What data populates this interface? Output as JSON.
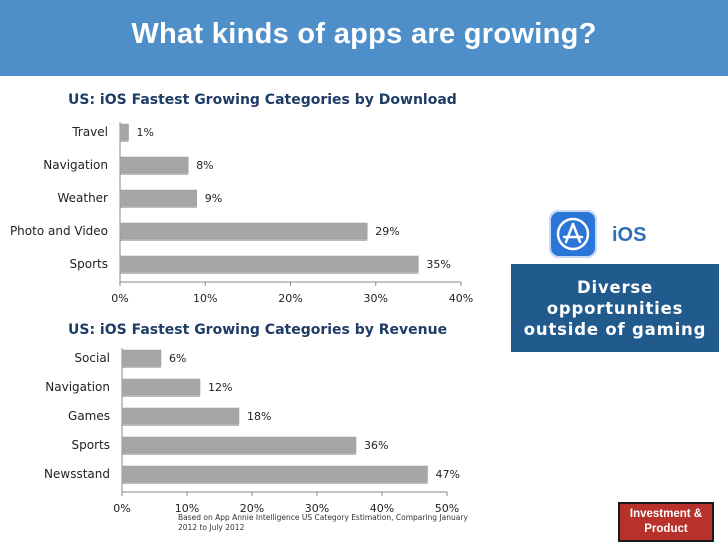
{
  "header": {
    "title": "What kinds of apps are growing?"
  },
  "chart_data": [
    {
      "type": "bar",
      "orientation": "horizontal",
      "title": "US: iOS Fastest Growing Categories by Download",
      "categories": [
        "Travel",
        "Navigation",
        "Weather",
        "Photo and Video",
        "Sports"
      ],
      "values": [
        1,
        8,
        9,
        29,
        35
      ],
      "value_labels": [
        "1%",
        "8%",
        "9%",
        "29%",
        "35%"
      ],
      "xlim": [
        0,
        40
      ],
      "ticks": [
        0,
        10,
        20,
        30,
        40
      ],
      "tick_labels": [
        "0%",
        "10%",
        "20%",
        "30%",
        "40%"
      ],
      "xlabel": "",
      "ylabel": ""
    },
    {
      "type": "bar",
      "orientation": "horizontal",
      "title": "US: iOS Fastest Growing Categories by Revenue",
      "categories": [
        "Social",
        "Navigation",
        "Games",
        "Sports",
        "Newsstand"
      ],
      "values": [
        6,
        12,
        18,
        36,
        47
      ],
      "value_labels": [
        "6%",
        "12%",
        "18%",
        "36%",
        "47%"
      ],
      "xlim": [
        0,
        50
      ],
      "ticks": [
        0,
        10,
        20,
        30,
        40,
        50
      ],
      "tick_labels": [
        "0%",
        "10%",
        "20%",
        "30%",
        "40%",
        "50%"
      ],
      "xlabel": "",
      "ylabel": ""
    }
  ],
  "sidebar": {
    "icon": "app-store-icon",
    "platform_label": "iOS",
    "callout_lines": [
      "Diverse",
      "opportunities",
      "outside of gaming"
    ]
  },
  "footnote": {
    "line1": "Based on App Annie Intelligence US Category Estimation, Comparing January",
    "line2": "2012 to July 2012"
  },
  "badge": {
    "line1": "Investment &",
    "line2": "Product"
  },
  "colors": {
    "header_bg": "#4e8fc9",
    "bar_fill": "#a6a6a6",
    "callout_bg": "#215a8c",
    "badge_bg": "#b8312a"
  }
}
